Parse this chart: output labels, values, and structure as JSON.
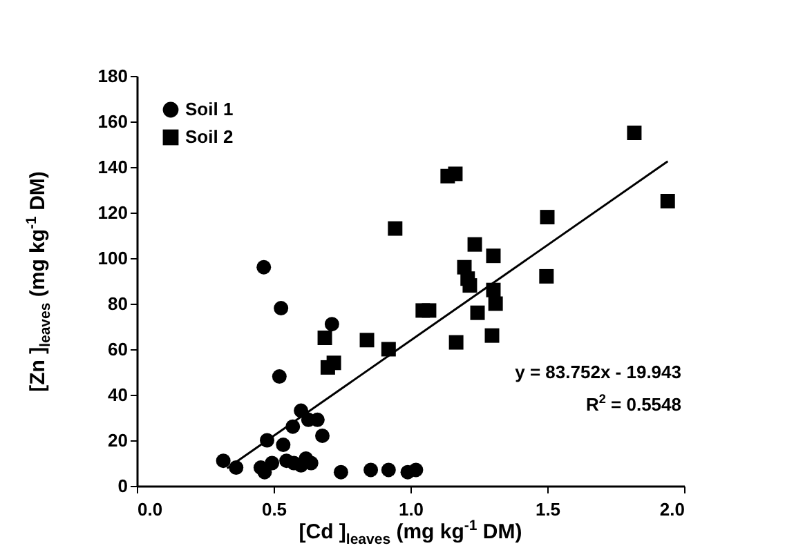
{
  "chart_data": {
    "type": "scatter",
    "xlabel": "[Cd ]$_{leaves}$ (mg kg$^{-1}$ DM)",
    "ylabel": "[Zn ]$_{leaves}$ (mg kg$^{-1}$ DM)",
    "xlim": [
      0,
      2
    ],
    "xticks": [
      {
        "value": 0,
        "label": "0.0"
      },
      {
        "value": 0.5,
        "label": "0.5"
      },
      {
        "value": 1,
        "label": "1.0"
      },
      {
        "value": 1.5,
        "label": "1.5"
      },
      {
        "value": 2,
        "label": "2.0"
      }
    ],
    "ylim": [
      0,
      180
    ],
    "yticks": [
      0,
      20,
      40,
      60,
      80,
      100,
      120,
      140,
      160,
      180
    ],
    "grid": false,
    "legend": "top left",
    "annotations": [
      "y = 83.752x - 19.943",
      "R$^{2}$ = 0.5548"
    ],
    "series": [
      {
        "name": "Soil 1",
        "color": "#000000",
        "marker": "circle",
        "x": [
          0.316,
          0.363,
          0.464,
          0.527,
          0.521,
          0.713,
          0.6,
          0.627,
          0.66,
          0.57,
          0.678,
          0.476,
          0.535,
          0.494,
          0.453,
          0.467,
          0.547,
          0.574,
          0.6,
          0.618,
          0.637,
          0.746,
          0.855,
          0.92,
          0.99,
          1.02
        ],
        "values": [
          11,
          8,
          96,
          78,
          48,
          71,
          33,
          29,
          29,
          26,
          22,
          20,
          18,
          10,
          8,
          6,
          11,
          10,
          9,
          12,
          10,
          6,
          7,
          7,
          6,
          7
        ]
      },
      {
        "name": "Soil 2",
        "color": "#000000",
        "marker": "square",
        "x": [
          0.687,
          0.698,
          0.72,
          0.841,
          0.92,
          0.944,
          1.045,
          1.068,
          1.136,
          1.164,
          1.167,
          1.197,
          1.209,
          1.217,
          1.235,
          1.245,
          1.298,
          1.303,
          1.303,
          1.311,
          1.497,
          1.5,
          1.818,
          1.94
        ],
        "values": [
          65,
          52,
          54,
          64,
          60,
          113,
          77,
          77,
          136,
          137,
          63,
          96,
          91,
          88,
          106,
          76,
          66,
          101,
          86,
          80,
          92,
          118,
          155,
          125
        ]
      },
      {
        "type": "line",
        "color": "#000000",
        "line_style": "solid",
        "x": [
          0.33,
          1.94
        ],
        "values": [
          7.7,
          142.5
        ]
      }
    ]
  }
}
